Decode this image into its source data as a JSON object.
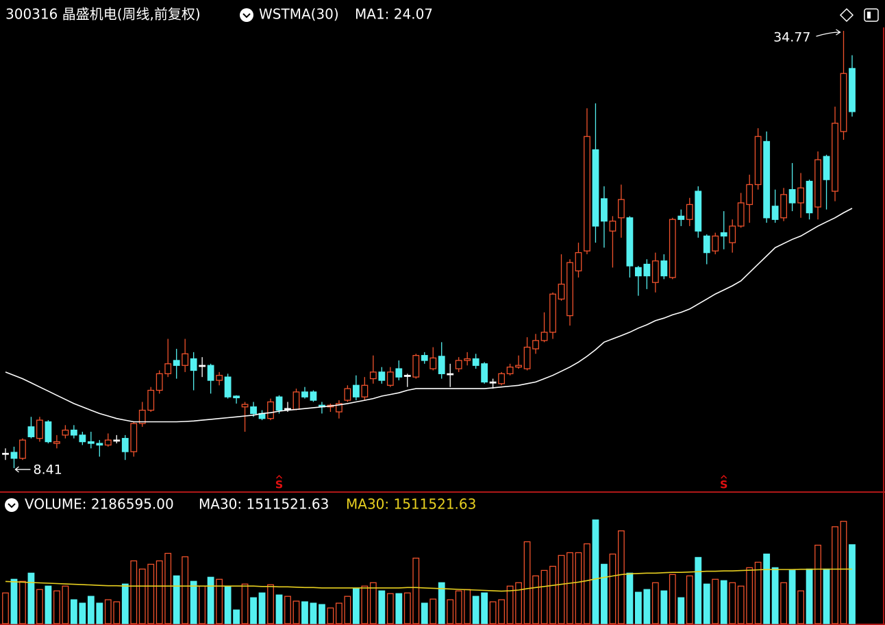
{
  "chart_data": {
    "type": "candlestick",
    "title": "300316 晶盛机电(周线,前复权)",
    "indicator": "WSTMA(30)",
    "ma_label": "MA1: 24.07",
    "volume_label": "VOLUME: 2186595.00",
    "volume_ma_label": "MA30: 1511521.63",
    "volume_ma_label_2": "MA30: 1511521.63",
    "high_label": "34.77",
    "low_label": "8.41",
    "signal_label": "S",
    "signals": [
      32,
      84
    ],
    "ylim": [
      7.09,
      35.39
    ],
    "volume_ylim": [
      0,
      3000000
    ],
    "up_color": "#f0522c",
    "down_color": "#54f0f0",
    "flat_color": "#ffffff",
    "ma_color": "#ffffff",
    "volume_ma_color": "#e8d020",
    "open": [
      9.3,
      9.36,
      9.0,
      10.9,
      10.2,
      11.2,
      9.9,
      10.4,
      10.7,
      10.4,
      10.0,
      9.9,
      9.8,
      10.1,
      10.2,
      9.4,
      11.1,
      11.9,
      13.1,
      14.1,
      14.9,
      14.6,
      15.0,
      14.6,
      14.6,
      13.7,
      13.9,
      12.75,
      12.1,
      12.1,
      11.7,
      11.4,
      12.7,
      12.0,
      11.95,
      13.0,
      13.0,
      12.2,
      12.1,
      11.8,
      12.5,
      13.4,
      12.7,
      13.8,
      14.2,
      13.4,
      14.4,
      14.0,
      13.9,
      15.2,
      14.4,
      15.15,
      14.1,
      14.4,
      14.9,
      15.0,
      14.7,
      13.6,
      13.5,
      14.1,
      14.5,
      14.4,
      15.6,
      16.1,
      16.6,
      18.6,
      17.6,
      20.3,
      21.5,
      27.6,
      24.65,
      22.7,
      23.5,
      23.5,
      20.5,
      20.7,
      19.6,
      20.9,
      19.9,
      23.6,
      23.4,
      25.1,
      22.4,
      21.5,
      22.6,
      22.0,
      23.0,
      24.3,
      25.5,
      28.1,
      24.2,
      23.5,
      25.2,
      24.4,
      25.7,
      24.15,
      27.2,
      25.1,
      28.7,
      32.5
    ],
    "high": [
      9.6,
      9.7,
      10.2,
      11.5,
      11.5,
      11.3,
      10.4,
      11.0,
      11.0,
      10.6,
      10.6,
      10.1,
      10.5,
      10.4,
      10.4,
      11.2,
      12.4,
      13.3,
      14.3,
      16.2,
      15.6,
      16.2,
      15.4,
      15.1,
      14.7,
      14.2,
      14.1,
      12.8,
      12.4,
      12.4,
      11.9,
      12.6,
      12.8,
      12.4,
      13.2,
      13.3,
      13.1,
      12.4,
      12.3,
      12.5,
      13.4,
      14.0,
      13.9,
      15.2,
      14.5,
      14.5,
      14.9,
      14.1,
      15.3,
      15.4,
      15.7,
      16.0,
      14.7,
      15.1,
      15.4,
      15.3,
      14.8,
      13.8,
      14.2,
      14.7,
      15.2,
      16.3,
      16.5,
      17.8,
      19.0,
      21.3,
      21.0,
      22.0,
      30.1,
      30.4,
      25.4,
      23.6,
      25.5,
      23.6,
      20.6,
      21.0,
      21.4,
      21.3,
      23.5,
      24.0,
      24.7,
      25.4,
      22.5,
      22.6,
      23.9,
      23.4,
      25.0,
      26.1,
      28.9,
      28.7,
      25.2,
      25.3,
      26.8,
      26.2,
      25.8,
      27.5,
      27.3,
      30.2,
      34.77,
      33.3
    ],
    "low": [
      8.9,
      8.41,
      8.9,
      10.2,
      10.0,
      9.9,
      9.6,
      10.2,
      10.2,
      9.8,
      9.6,
      9.1,
      9.7,
      9.9,
      8.9,
      9.1,
      10.9,
      11.8,
      12.9,
      13.9,
      13.8,
      14.2,
      13.1,
      13.9,
      12.9,
      13.4,
      12.6,
      12.3,
      10.6,
      11.5,
      11.3,
      11.3,
      11.7,
      11.8,
      11.9,
      12.6,
      12.4,
      11.7,
      11.8,
      11.4,
      12.4,
      12.5,
      12.5,
      13.5,
      13.5,
      13.3,
      13.7,
      13.3,
      13.8,
      14.7,
      14.3,
      13.8,
      13.3,
      14.2,
      14.6,
      14.4,
      13.5,
      13.2,
      13.4,
      14.0,
      14.4,
      14.3,
      15.3,
      16.0,
      16.2,
      18.5,
      17.0,
      19.9,
      21.3,
      22.0,
      21.7,
      20.5,
      22.3,
      19.9,
      18.8,
      19.2,
      19.0,
      19.8,
      19.8,
      23.0,
      23.0,
      22.3,
      20.7,
      21.3,
      21.6,
      21.4,
      22.9,
      23.2,
      25.2,
      23.2,
      23.2,
      23.3,
      23.9,
      23.5,
      23.4,
      23.4,
      24.0,
      24.5,
      28.2,
      29.6
    ],
    "close": [
      9.3,
      9.0,
      10.1,
      10.3,
      11.3,
      10.0,
      10.0,
      10.7,
      10.4,
      10.0,
      9.9,
      9.8,
      10.1,
      10.1,
      9.4,
      11.1,
      11.9,
      13.1,
      14.1,
      14.7,
      14.6,
      15.3,
      14.3,
      14.6,
      13.7,
      14.0,
      12.7,
      12.65,
      12.25,
      11.7,
      11.4,
      12.4,
      11.9,
      12.0,
      13.0,
      12.7,
      12.5,
      12.1,
      12.2,
      12.3,
      13.2,
      12.7,
      13.4,
      14.2,
      13.7,
      14.2,
      13.9,
      14.0,
      15.2,
      14.9,
      15.05,
      14.1,
      14.1,
      14.9,
      15.0,
      14.6,
      13.6,
      13.6,
      14.1,
      14.5,
      14.6,
      15.7,
      16.1,
      16.6,
      18.9,
      19.5,
      20.8,
      21.4,
      28.4,
      23.0,
      23.3,
      23.3,
      24.6,
      20.6,
      20.0,
      20.0,
      20.9,
      20.0,
      23.4,
      23.4,
      24.3,
      22.7,
      21.4,
      22.4,
      22.4,
      23.0,
      24.4,
      25.5,
      28.4,
      23.5,
      23.4,
      24.9,
      24.4,
      25.3,
      23.8,
      27.0,
      25.8,
      29.2,
      32.2,
      29.9
    ],
    "ma": [
      14.2,
      14.0,
      13.8,
      13.55,
      13.3,
      13.05,
      12.8,
      12.55,
      12.3,
      12.1,
      11.9,
      11.7,
      11.55,
      11.4,
      11.3,
      11.2,
      11.2,
      11.2,
      11.2,
      11.2,
      11.2,
      11.22,
      11.25,
      11.3,
      11.35,
      11.4,
      11.45,
      11.5,
      11.55,
      11.6,
      11.7,
      11.75,
      11.84,
      11.9,
      11.95,
      12.0,
      12.05,
      12.1,
      12.15,
      12.22,
      12.3,
      12.4,
      12.5,
      12.6,
      12.75,
      12.85,
      12.95,
      13.1,
      13.2,
      13.2,
      13.2,
      13.2,
      13.2,
      13.2,
      13.2,
      13.2,
      13.2,
      13.25,
      13.3,
      13.35,
      13.4,
      13.5,
      13.6,
      13.8,
      14.0,
      14.25,
      14.5,
      14.8,
      15.15,
      15.55,
      16.0,
      16.2,
      16.4,
      16.6,
      16.85,
      17.05,
      17.3,
      17.45,
      17.65,
      17.8,
      18.0,
      18.3,
      18.6,
      18.9,
      19.15,
      19.4,
      19.7,
      20.2,
      20.7,
      21.2,
      21.7,
      21.95,
      22.2,
      22.4,
      22.7,
      23.0,
      23.25,
      23.5,
      23.8,
      24.07
    ],
    "volume": [
      850500,
      1228500,
      1171800,
      1398600,
      945000,
      1039500,
      907200,
      1039500,
      661500,
      567000,
      756000,
      567000,
      661500,
      604800,
      1096200,
      1738800,
      1512000,
      1644300,
      1738800,
      1946700,
      1323000,
      1852200,
      1171800,
      1039500,
      1285200,
      1228500,
      1039500,
      378000,
      1096200,
      718200,
      850500,
      1077300,
      793800,
      756000,
      623700,
      604800,
      567000,
      529200,
      434700,
      567000,
      756000,
      982800,
      1039500,
      1134000,
      907200,
      831600,
      831600,
      850500,
      1814400,
      567000,
      680400,
      1134000,
      661500,
      907200,
      945000,
      756000,
      850500,
      604800,
      661500,
      1039500,
      1134000,
      2268000,
      1323000,
      1474200,
      1587600,
      1890000,
      1965600,
      1965600,
      2211300,
      2872800,
      1644300,
      1927800,
      2570400,
      1398600,
      869400,
      945000,
      1134000,
      907200,
      1360800,
      718200,
      1323000,
      1833300,
      1096200,
      1228500,
      1190700,
      1134000,
      1039500,
      1549800,
      1701000,
      1927800,
      1549800,
      1134000,
      1474200,
      907200,
      1512000,
      2173500,
      1512000,
      2683800,
      2835000,
      2186595
    ],
    "volume_ma": [
      1170000,
      1160000,
      1150000,
      1140000,
      1130000,
      1120000,
      1110000,
      1100000,
      1090000,
      1080000,
      1070000,
      1060000,
      1050000,
      1050000,
      1040000,
      1040000,
      1040000,
      1040000,
      1040000,
      1040000,
      1040000,
      1040000,
      1040000,
      1040000,
      1040000,
      1040000,
      1040000,
      1040000,
      1040000,
      1040000,
      1030000,
      1030000,
      1020000,
      1020000,
      1010000,
      1000000,
      1000000,
      990000,
      990000,
      990000,
      990000,
      990000,
      990000,
      990000,
      990000,
      990000,
      990000,
      1000000,
      1000000,
      990000,
      980000,
      970000,
      960000,
      950000,
      940000,
      930000,
      920000,
      910000,
      900000,
      910000,
      930000,
      970000,
      1000000,
      1030000,
      1060000,
      1090000,
      1120000,
      1150000,
      1190000,
      1240000,
      1280000,
      1320000,
      1360000,
      1380000,
      1390000,
      1400000,
      1400000,
      1410000,
      1420000,
      1420000,
      1430000,
      1440000,
      1450000,
      1450000,
      1460000,
      1460000,
      1470000,
      1480000,
      1490000,
      1500000,
      1500000,
      1500000,
      1500000,
      1505000,
      1505000,
      1510000,
      1510000,
      1510000,
      1511000,
      1511521.63
    ]
  }
}
